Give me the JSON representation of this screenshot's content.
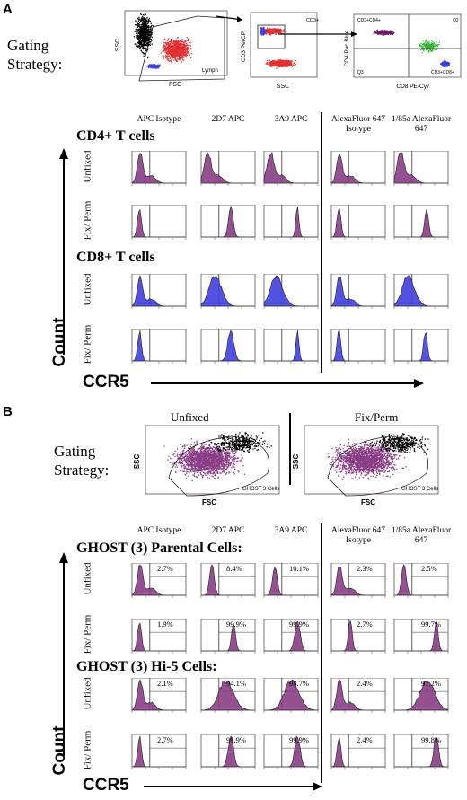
{
  "panel_a": {
    "letter": "A",
    "gating_label": "Gating Strategy:",
    "gate_labels": {
      "lymph": "Lymph",
      "cd3": "CD3+",
      "q_cd4": "CD3+CD4+",
      "q2": "Q2",
      "q3": "Q3",
      "q_cd8": "CD3+CD8+"
    },
    "axes": {
      "ssc": "SSC",
      "fsc": "FSC",
      "cd3": "CD3 PerCP",
      "ssc2": "SSC",
      "cd4": "CD4 Pac Blue",
      "cd8": "CD8 PE-Cy7"
    },
    "columns": [
      "APC Isotype",
      "2D7 APC",
      "3A9 APC",
      "AlexaFluor 647 Isotype",
      "1/85a AlexaFluor 647"
    ],
    "sections": [
      "CD4+ T cells",
      "CD8+ T cells"
    ],
    "rows": [
      "Unfixed",
      "Fix/ Perm"
    ],
    "y_axis": "Count",
    "x_axis": "CCR5"
  },
  "panel_b": {
    "letter": "B",
    "gating_label": "Gating Strategy:",
    "gating_titles": [
      "Unfixed",
      "Fix/Perm"
    ],
    "gate_label": "GHOST 3 Cells",
    "axes": {
      "ssc": "SSC",
      "fsc": "FSC"
    },
    "columns": [
      "APC Isotype",
      "2D7 APC",
      "3A9 APC",
      "AlexaFluor 647 Isotype",
      "1/85a AlexaFluor 647"
    ],
    "sections": [
      "GHOST (3) Parental Cells:",
      "GHOST (3) Hi-5 Cells:"
    ],
    "rows": [
      "Unfixed",
      "Fix/ Perm"
    ],
    "percentages": [
      [
        "2.7%",
        "8.4%",
        "10.1%",
        "2.3%",
        "2.5%"
      ],
      [
        "1.9%",
        "99.9%",
        "99.9%",
        "2.7%",
        "99.7%"
      ],
      [
        "2.1%",
        "94.1%",
        "98.7%",
        "2.4%",
        "97.2%"
      ],
      [
        "2.7%",
        "99.9%",
        "99.9%",
        "2.4%",
        "99.8%"
      ]
    ],
    "y_axis": "Count",
    "x_axis": "CCR5"
  },
  "colors": {
    "purple": "#8a3d86",
    "blue": "#3f3fe0",
    "red": "#e23030",
    "green": "#36b336",
    "black": "#000000"
  }
}
